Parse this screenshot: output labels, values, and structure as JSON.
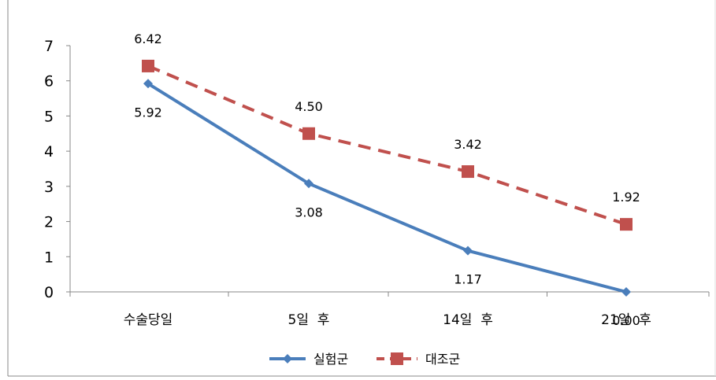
{
  "chart_data": {
    "type": "line",
    "categories": [
      "수술당일",
      "5일  후",
      "14일  후",
      "21일  후"
    ],
    "series": [
      {
        "name": "실험군",
        "values": [
          5.92,
          3.08,
          1.17,
          0.0
        ],
        "labels": [
          "5.92",
          "3.08",
          "1.17",
          "0.00"
        ],
        "color": "#4a7ebb",
        "marker": "diamond",
        "line": "solid"
      },
      {
        "name": "대조군",
        "values": [
          6.42,
          4.5,
          3.42,
          1.92
        ],
        "labels": [
          "6.42",
          "4.50",
          "3.42",
          "1.92"
        ],
        "color": "#c0504d",
        "marker": "square",
        "line": "dashed"
      }
    ],
    "ylim": [
      0,
      7
    ],
    "yticks": [
      "0",
      "1",
      "2",
      "3",
      "4",
      "5",
      "6",
      "7"
    ],
    "grid": false,
    "legend": "bottom"
  }
}
